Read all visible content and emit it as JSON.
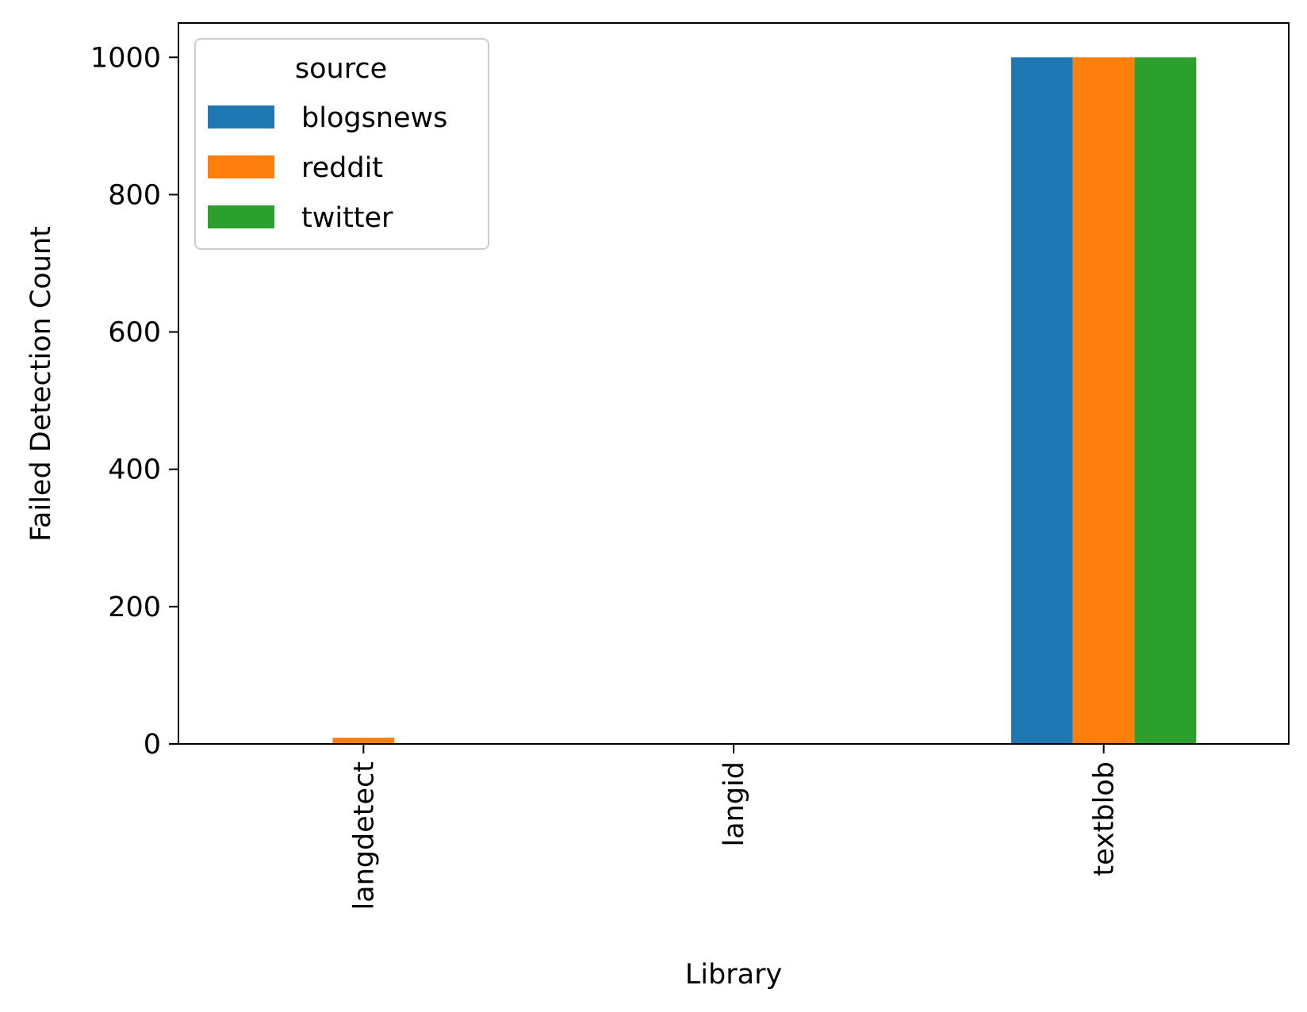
{
  "chart_data": {
    "type": "bar",
    "xlabel": "Library",
    "ylabel": "Failed Detection Count",
    "categories": [
      "langdetect",
      "langid",
      "textblob"
    ],
    "series": [
      {
        "name": "blogsnews",
        "color": "#1f77b4",
        "values": [
          0,
          0,
          1000
        ]
      },
      {
        "name": "reddit",
        "color": "#ff7f0e",
        "values": [
          9,
          0,
          1000
        ]
      },
      {
        "name": "twitter",
        "color": "#2ca02c",
        "values": [
          0,
          0,
          1000
        ]
      }
    ],
    "ylim": [
      0,
      1050
    ],
    "yticks": [
      0,
      200,
      400,
      600,
      800,
      1000
    ],
    "legend": {
      "title": "source",
      "position": "upper left"
    },
    "grid": false,
    "tick_label_rotation": "vertical"
  }
}
